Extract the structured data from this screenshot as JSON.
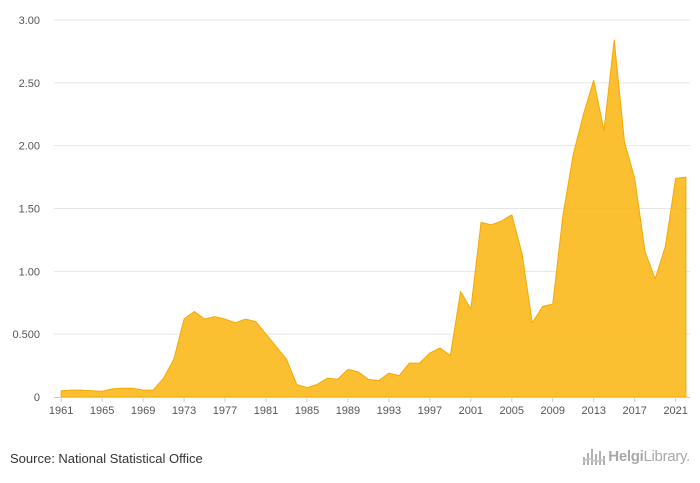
{
  "chart_data": {
    "type": "area",
    "title": "",
    "xlabel": "",
    "ylabel": "",
    "x": [
      1961,
      1962,
      1963,
      1964,
      1965,
      1966,
      1967,
      1968,
      1969,
      1970,
      1971,
      1972,
      1973,
      1974,
      1975,
      1976,
      1977,
      1978,
      1979,
      1980,
      1981,
      1982,
      1983,
      1984,
      1985,
      1986,
      1987,
      1988,
      1989,
      1990,
      1991,
      1992,
      1993,
      1994,
      1995,
      1996,
      1997,
      1998,
      1999,
      2000,
      2001,
      2002,
      2003,
      2004,
      2005,
      2006,
      2007,
      2008,
      2009,
      2010,
      2011,
      2012,
      2013,
      2014,
      2015,
      2016,
      2017,
      2018,
      2019,
      2020,
      2021,
      2022
    ],
    "values": [
      0.05,
      0.055,
      0.055,
      0.05,
      0.045,
      0.065,
      0.07,
      0.07,
      0.055,
      0.055,
      0.15,
      0.3,
      0.62,
      0.68,
      0.62,
      0.64,
      0.62,
      0.59,
      0.62,
      0.6,
      0.5,
      0.4,
      0.3,
      0.1,
      0.075,
      0.1,
      0.15,
      0.14,
      0.22,
      0.2,
      0.14,
      0.13,
      0.19,
      0.17,
      0.27,
      0.27,
      0.35,
      0.39,
      0.33,
      0.84,
      0.7,
      1.39,
      1.37,
      1.4,
      1.45,
      1.14,
      0.59,
      0.72,
      0.74,
      1.45,
      1.93,
      2.25,
      2.52,
      2.12,
      2.84,
      2.03,
      1.74,
      1.16,
      0.94,
      1.2,
      1.74,
      1.75
    ],
    "x_ticks": [
      "1961",
      "1965",
      "1969",
      "1973",
      "1977",
      "1981",
      "1985",
      "1989",
      "1993",
      "1997",
      "2001",
      "2005",
      "2009",
      "2013",
      "2017",
      "2021"
    ],
    "y_ticks": [
      "0",
      "0.500",
      "1.00",
      "1.50",
      "2.00",
      "2.50",
      "3.00"
    ],
    "ylim": [
      0,
      3.0
    ],
    "grid": true,
    "colors": {
      "fill": "#fbb714",
      "fill_opacity": 0.88,
      "line": "#f5a800"
    }
  },
  "footer": {
    "source": "Source: National Statistical Office",
    "logo": {
      "brand": "Helgi",
      "suffix": "Library."
    }
  }
}
